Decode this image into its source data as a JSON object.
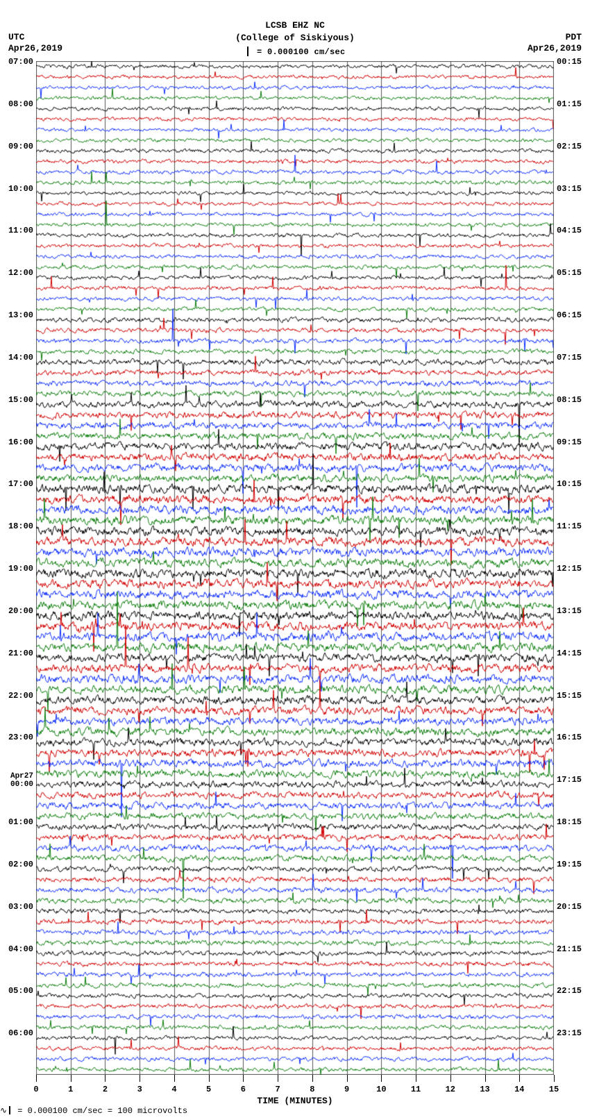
{
  "title_line1": "LCSB EHZ NC",
  "title_line2": "(College of Siskiyous)",
  "scale_label": " = 0.000100 cm/sec",
  "tz_left": "UTC",
  "tz_right": "PDT",
  "date_left": "Apr26,2019",
  "date_right": "Apr26,2019",
  "footnote": " = 0.000100 cm/sec =    100 microvolts",
  "x_axis": {
    "title": "TIME (MINUTES)",
    "min": 0,
    "max": 15,
    "step": 1,
    "sub_gridlines_per_step": 4
  },
  "plot": {
    "background": "#ffffff",
    "grid_color": "#545454",
    "n_hours": 24,
    "traces_per_hour": 4,
    "trace_colors": [
      "#000000",
      "#d30000",
      "#1030ff",
      "#0f7f0f"
    ],
    "amplitude_scale": 0.55,
    "noise_seed": 20190426,
    "left_labels": [
      "07:00",
      "08:00",
      "09:00",
      "10:00",
      "11:00",
      "12:00",
      "13:00",
      "14:00",
      "15:00",
      "16:00",
      "17:00",
      "18:00",
      "19:00",
      "20:00",
      "21:00",
      "22:00",
      "23:00",
      {
        "day": "Apr27",
        "time": "00:00"
      },
      "01:00",
      "02:00",
      "03:00",
      "04:00",
      "05:00",
      "06:00"
    ],
    "right_labels": [
      "00:15",
      "01:15",
      "02:15",
      "03:15",
      "04:15",
      "05:15",
      "06:15",
      "07:15",
      "08:15",
      "09:15",
      "10:15",
      "11:15",
      "12:15",
      "13:15",
      "14:15",
      "15:15",
      "16:15",
      "17:15",
      "18:15",
      "19:15",
      "20:15",
      "21:15",
      "22:15",
      "23:15"
    ],
    "amplitude_envelope": [
      0.55,
      0.55,
      0.6,
      0.55,
      0.6,
      0.6,
      0.7,
      0.85,
      1.0,
      1.15,
      1.3,
      1.3,
      1.3,
      1.3,
      1.25,
      1.2,
      1.15,
      1.0,
      0.9,
      0.8,
      0.75,
      0.7,
      0.65,
      0.6
    ]
  },
  "fonts": {
    "family": "Courier New",
    "title_size": 13,
    "label_size": 12
  }
}
